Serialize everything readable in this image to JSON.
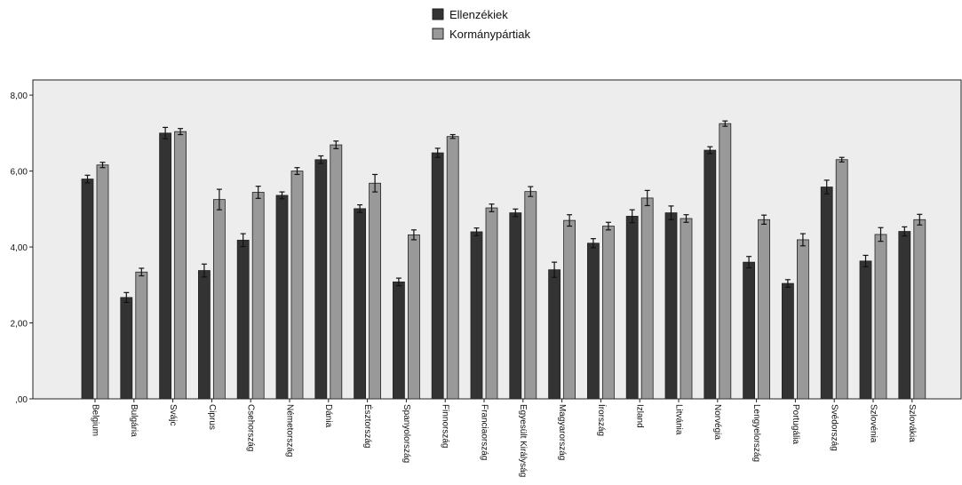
{
  "chart_data": {
    "type": "bar",
    "title": "",
    "xlabel": "",
    "ylabel": "",
    "ylim": [
      0,
      8.4
    ],
    "yticks": [
      0,
      2,
      4,
      6,
      8
    ],
    "ytick_labels": [
      ",00",
      "2,00",
      "4,00",
      "6,00",
      "8,00"
    ],
    "grid": false,
    "legend": "top-center",
    "error_bars": true,
    "categories": [
      "Belgium",
      "Bulgária",
      "Svájc",
      "Ciprus",
      "Csehország",
      "Németország",
      "Dánia",
      "Észtország",
      "Spanyolország",
      "Finnország",
      "Franciaország",
      "Egyesült Királyság",
      "Magyarország",
      "Írország",
      "Izland",
      "Litvánia",
      "Norvégia",
      "Lengyelország",
      "Portugália",
      "Svédország",
      "Szlovénia",
      "Szlovákia"
    ],
    "series": [
      {
        "name": "Ellenzékiek",
        "color": "#333333",
        "values": [
          5.79,
          2.67,
          7.0,
          3.38,
          4.18,
          5.36,
          6.3,
          5.01,
          3.08,
          6.48,
          4.4,
          4.9,
          3.4,
          4.1,
          4.81,
          4.9,
          6.55,
          3.6,
          3.04,
          5.58,
          3.63,
          4.41
        ],
        "errors": [
          0.1,
          0.13,
          0.15,
          0.17,
          0.17,
          0.09,
          0.1,
          0.1,
          0.1,
          0.12,
          0.1,
          0.1,
          0.2,
          0.12,
          0.17,
          0.18,
          0.09,
          0.15,
          0.1,
          0.18,
          0.15,
          0.12
        ]
      },
      {
        "name": "Kormánypártiak",
        "color": "#999999",
        "values": [
          6.16,
          3.34,
          7.04,
          5.25,
          5.44,
          6.0,
          6.69,
          5.68,
          4.32,
          6.91,
          5.03,
          5.46,
          4.7,
          4.55,
          5.29,
          4.75,
          7.25,
          4.72,
          4.19,
          6.3,
          4.33,
          4.72
        ],
        "errors": [
          0.07,
          0.1,
          0.08,
          0.27,
          0.16,
          0.09,
          0.1,
          0.23,
          0.13,
          0.05,
          0.1,
          0.13,
          0.15,
          0.1,
          0.2,
          0.1,
          0.07,
          0.12,
          0.16,
          0.06,
          0.18,
          0.14
        ]
      }
    ]
  }
}
